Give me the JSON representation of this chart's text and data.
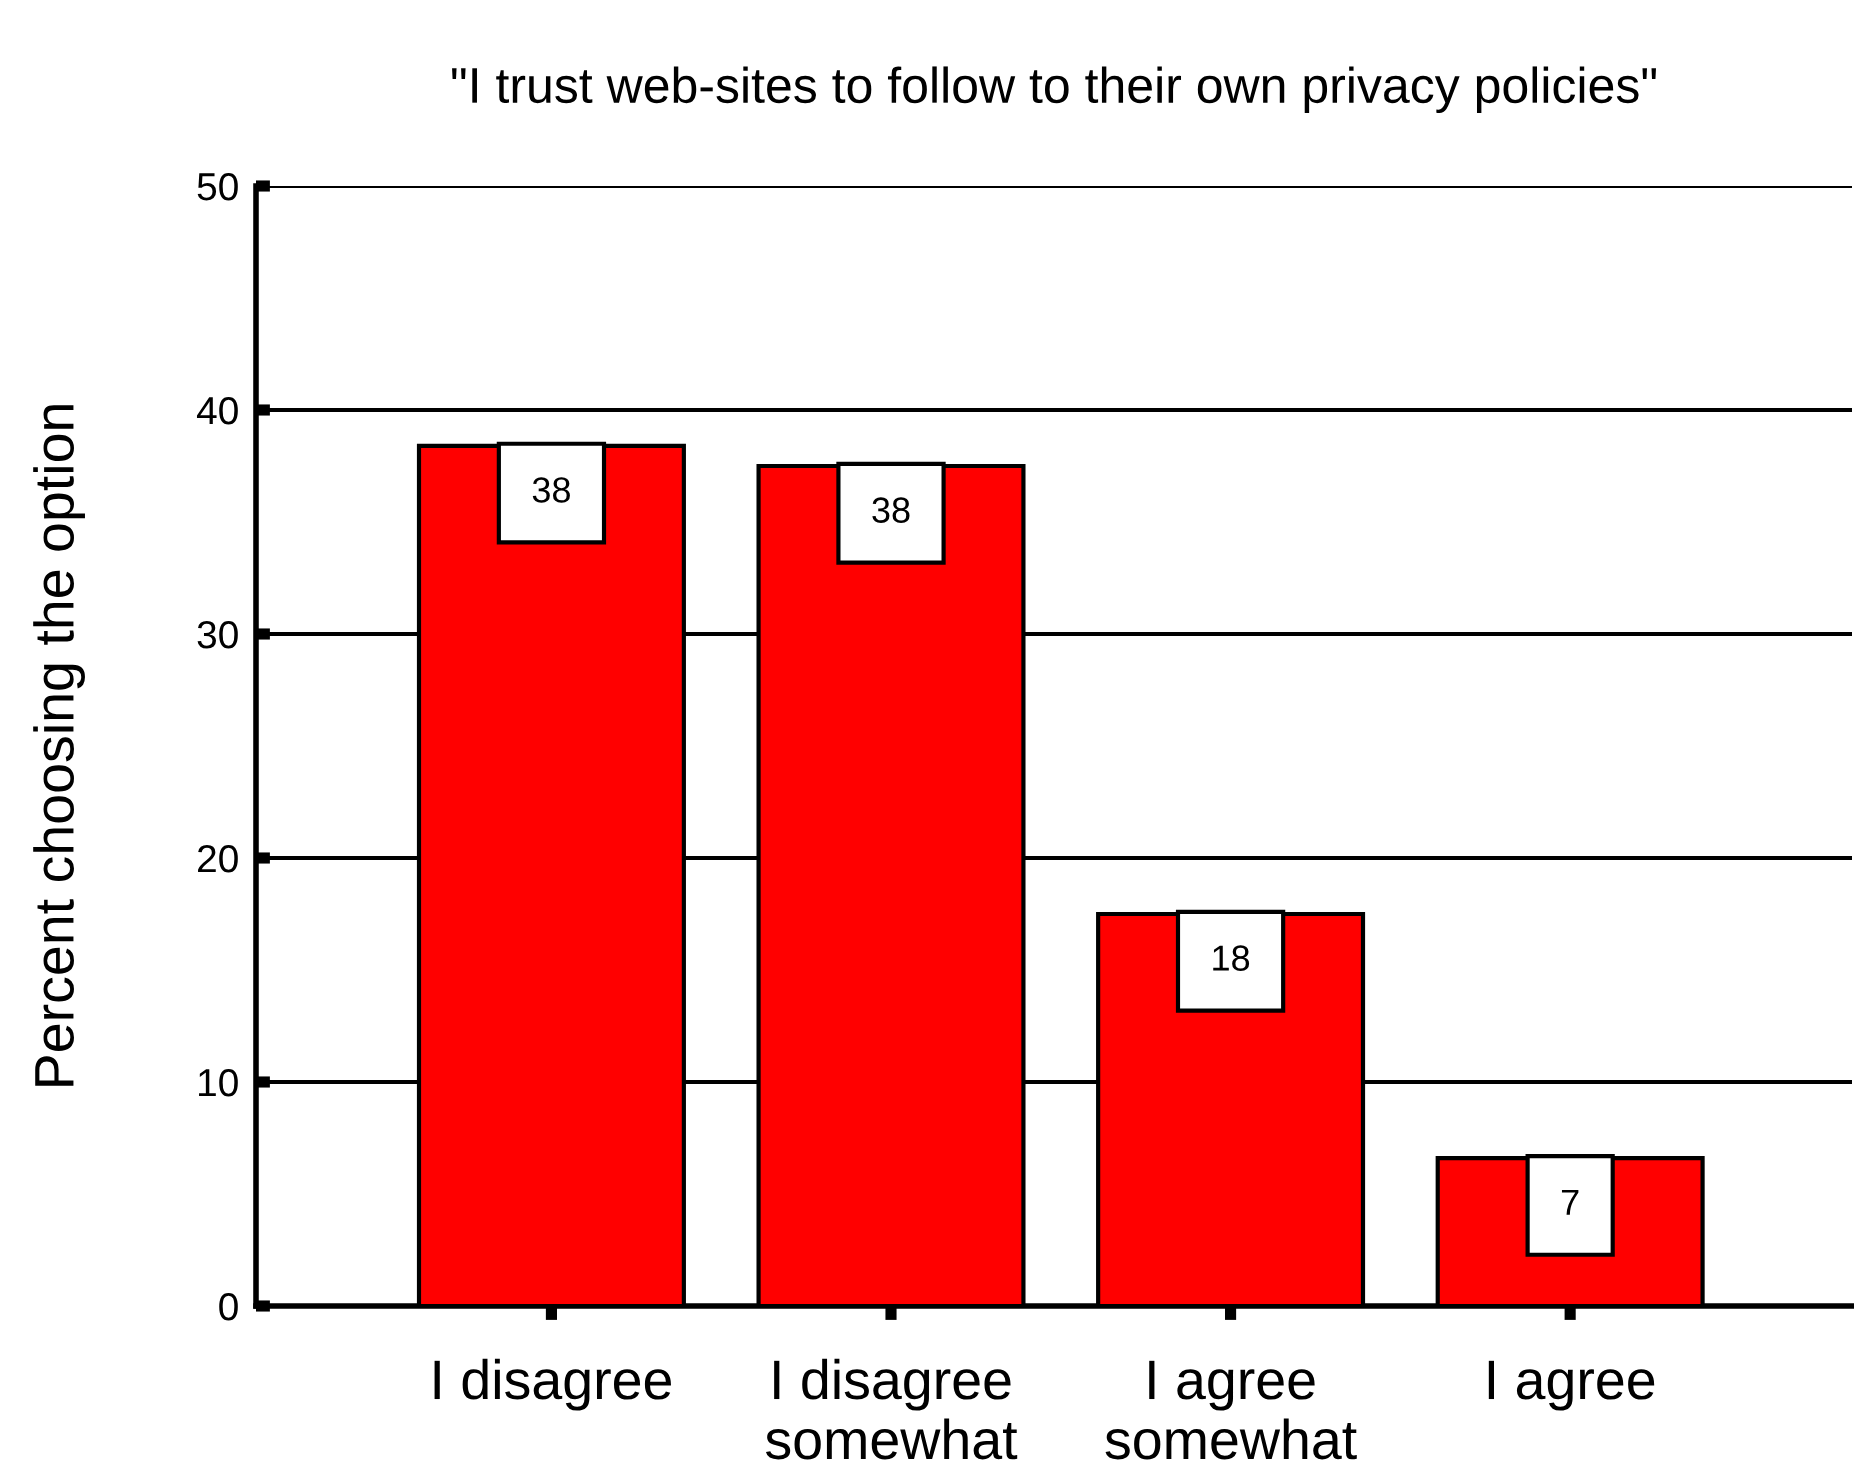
{
  "chart_data": {
    "type": "bar",
    "title": "\"I trust web-sites to follow to their own privacy policies\"",
    "ylabel": "Percent choosing the option",
    "categories": [
      "I disagree",
      "I disagree\nsomewhat",
      "I agree\nsomewhat",
      "I agree"
    ],
    "values": [
      38.4,
      37.5,
      17.5,
      6.6
    ],
    "value_labels": [
      "38",
      "38",
      "18",
      "7"
    ],
    "color": "#ff0000",
    "ylim": [
      0,
      50
    ],
    "yticks": [
      0,
      10,
      20,
      30,
      40,
      50
    ],
    "grid": "y"
  }
}
